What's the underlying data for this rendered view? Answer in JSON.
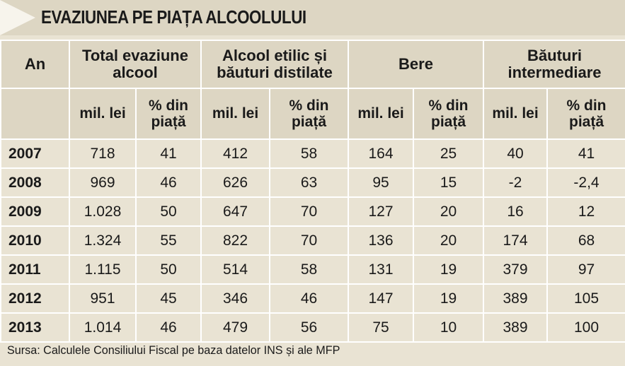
{
  "title": "EVAZIUNEA PE PIAȚA ALCOOLULUI",
  "header": {
    "an": "An",
    "groups": [
      "Total evaziune alcool",
      "Alcool etilic și băuturi distilate",
      "Bere",
      "Băuturi intermediare"
    ],
    "subcols": [
      [
        "mil. lei",
        "% din piață"
      ],
      [
        "mil. lei",
        "% din piață"
      ],
      [
        "mil. lei",
        "% din piață"
      ],
      [
        "mil. lei",
        "% din piață"
      ]
    ]
  },
  "rows": [
    {
      "year": "2007",
      "values": [
        "718",
        "41",
        "412",
        "58",
        "164",
        "25",
        "40",
        "41"
      ]
    },
    {
      "year": "2008",
      "values": [
        "969",
        "46",
        "626",
        "63",
        "95",
        "15",
        "-2",
        "-2,4"
      ]
    },
    {
      "year": "2009",
      "values": [
        "1.028",
        "50",
        "647",
        "70",
        "127",
        "20",
        "16",
        "12"
      ]
    },
    {
      "year": "2010",
      "values": [
        "1.324",
        "55",
        "822",
        "70",
        "136",
        "20",
        "174",
        "68"
      ]
    },
    {
      "year": "2011",
      "values": [
        "1.115",
        "50",
        "514",
        "58",
        "131",
        "19",
        "379",
        "97"
      ]
    },
    {
      "year": "2012",
      "values": [
        "951",
        "45",
        "346",
        "46",
        "147",
        "19",
        "389",
        "105"
      ]
    },
    {
      "year": "2013",
      "values": [
        "1.014",
        "46",
        "479",
        "56",
        "75",
        "10",
        "389",
        "100"
      ]
    }
  ],
  "source": "Sursa: Calculele Consiliului Fiscal pe baza datelor INS și ale MFP"
}
